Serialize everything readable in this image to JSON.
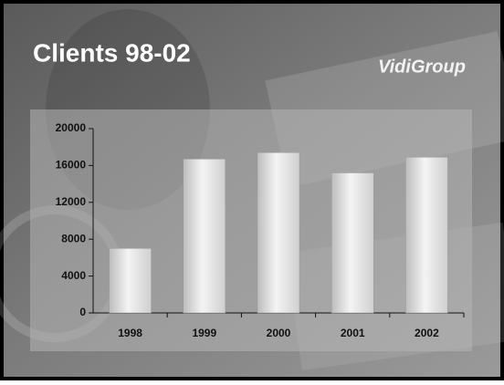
{
  "logo": "VidiGroup",
  "chart_data": {
    "type": "bar",
    "title": "Clients 98-02",
    "categories": [
      "1998",
      "1999",
      "2000",
      "2001",
      "2002"
    ],
    "values": [
      7000,
      16700,
      17400,
      15200,
      16900
    ],
    "color": "#e8e8e8",
    "ylim": [
      0,
      20000
    ],
    "yticks": [
      0,
      4000,
      8000,
      12000,
      16000,
      20000
    ],
    "grid": false
  }
}
